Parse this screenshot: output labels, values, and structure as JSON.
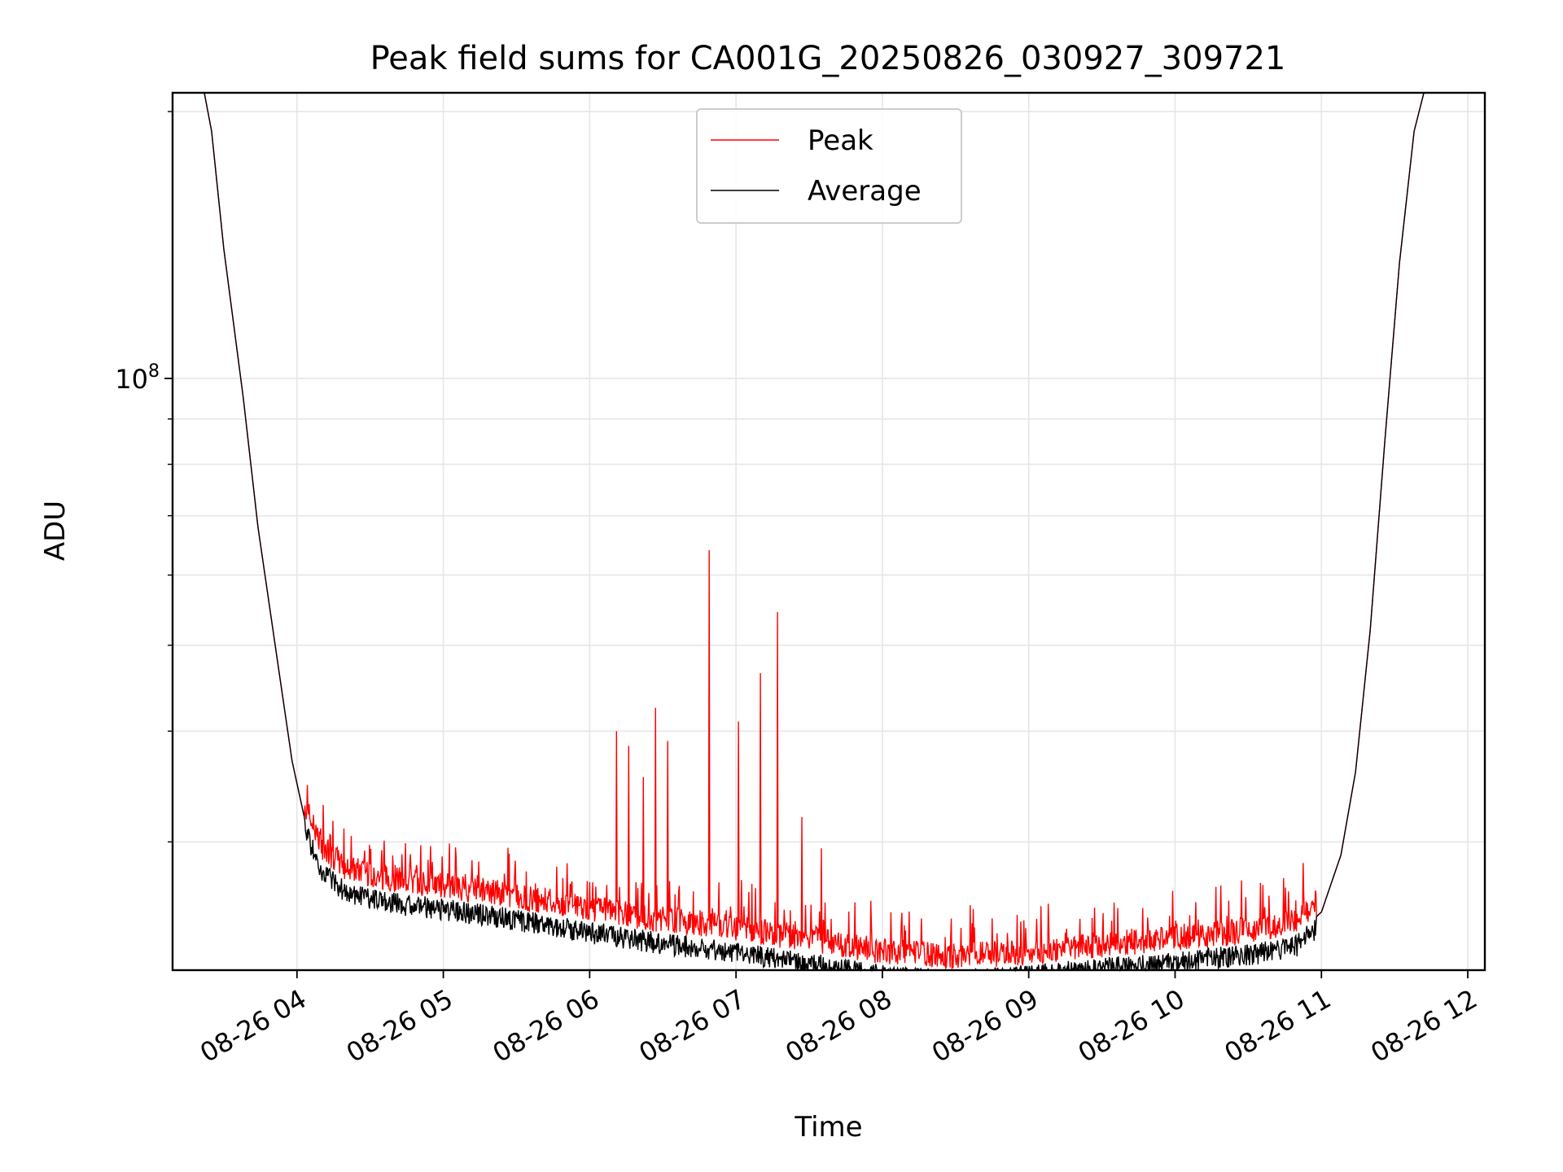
{
  "chart_data": {
    "type": "line",
    "title": "Peak field sums for CA001G_20250826_030927_309721",
    "xlabel": "Time",
    "ylabel": "ADU",
    "yscale": "log",
    "ylim": [
      21500000,
      210000000
    ],
    "xlim": [
      "2025-08-26 03:09",
      "2025-08-26 12:07"
    ],
    "x_tick_labels": [
      "08-26 04",
      "08-26 05",
      "08-26 06",
      "08-26 07",
      "08-26 08",
      "08-26 09",
      "08-26 10",
      "08-26 11",
      "08-26 12"
    ],
    "x_tick_times": [
      "2025-08-26 04:00",
      "2025-08-26 05:00",
      "2025-08-26 06:00",
      "2025-08-26 07:00",
      "2025-08-26 08:00",
      "2025-08-26 09:00",
      "2025-08-26 10:00",
      "2025-08-26 11:00",
      "2025-08-26 12:00"
    ],
    "y_tick_label": {
      "base": "10",
      "exp": "8"
    },
    "y_major_tick": 100000000,
    "y_minor_ticks": [
      30000000,
      40000000,
      50000000,
      60000000,
      70000000,
      80000000,
      90000000,
      200000000
    ],
    "grid": true,
    "legend_position": "top-center",
    "series": [
      {
        "name": "Average",
        "color": "#000000",
        "points": [
          [
            "2025-08-26 03:22",
            210000000
          ],
          [
            "2025-08-26 03:25",
            190000000
          ],
          [
            "2025-08-26 03:30",
            140000000
          ],
          [
            "2025-08-26 03:38",
            95000000
          ],
          [
            "2025-08-26 03:44",
            68000000
          ],
          [
            "2025-08-26 03:52",
            48000000
          ],
          [
            "2025-08-26 03:58",
            37000000
          ],
          [
            "2025-08-26 04:03",
            32000000
          ],
          [
            "2025-08-26 04:10",
            28700000
          ],
          [
            "2025-08-26 04:20",
            27100000
          ],
          [
            "2025-08-26 04:40",
            26300000
          ],
          [
            "2025-08-26 05:00",
            25900000
          ],
          [
            "2025-08-26 05:30",
            25200000
          ],
          [
            "2025-08-26 06:00",
            24400000
          ],
          [
            "2025-08-26 06:30",
            23700000
          ],
          [
            "2025-08-26 07:00",
            23200000
          ],
          [
            "2025-08-26 07:30",
            22500000
          ],
          [
            "2025-08-26 08:00",
            21800000
          ],
          [
            "2025-08-26 08:30",
            21500000
          ],
          [
            "2025-08-26 09:00",
            21800000
          ],
          [
            "2025-08-26 09:30",
            22200000
          ],
          [
            "2025-08-26 10:00",
            22600000
          ],
          [
            "2025-08-26 10:30",
            23000000
          ],
          [
            "2025-08-26 10:50",
            23600000
          ],
          [
            "2025-08-26 11:00",
            25000000
          ],
          [
            "2025-08-26 11:08",
            29000000
          ],
          [
            "2025-08-26 11:14",
            36000000
          ],
          [
            "2025-08-26 11:20",
            52000000
          ],
          [
            "2025-08-26 11:26",
            85000000
          ],
          [
            "2025-08-26 11:32",
            135000000
          ],
          [
            "2025-08-26 11:38",
            190000000
          ],
          [
            "2025-08-26 11:42",
            210000000
          ]
        ]
      },
      {
        "name": "Peak",
        "color": "#ff0000",
        "spikes": [
          [
            "2025-08-26 06:11",
            40000000
          ],
          [
            "2025-08-26 06:16",
            38500000
          ],
          [
            "2025-08-26 06:22",
            35500000
          ],
          [
            "2025-08-26 06:27",
            42500000
          ],
          [
            "2025-08-26 06:32",
            39000000
          ],
          [
            "2025-08-26 06:49",
            64000000
          ],
          [
            "2025-08-26 07:01",
            41000000
          ],
          [
            "2025-08-26 07:10",
            46500000
          ],
          [
            "2025-08-26 07:17",
            54500000
          ],
          [
            "2025-08-26 07:27",
            32000000
          ],
          [
            "2025-08-26 07:35",
            29500000
          ]
        ]
      }
    ]
  }
}
